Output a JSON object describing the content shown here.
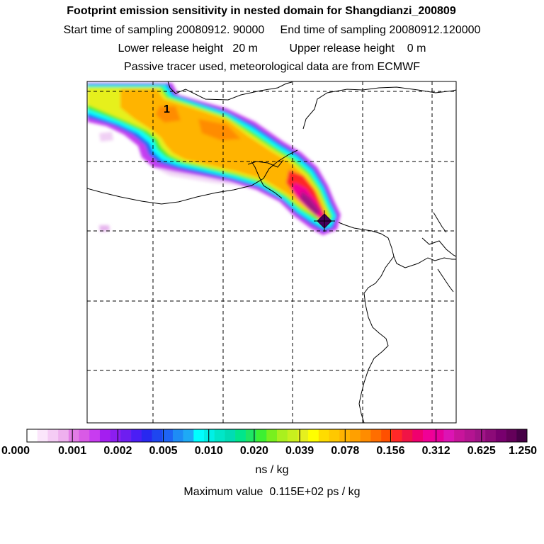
{
  "header": {
    "title": "Footprint emission sensitivity in nested domain for Shangdianzi_200809",
    "sampling": "Start time of sampling 20080912. 90000     End time of sampling 20080912.120000",
    "release": "Lower release height   20 m          Upper release height    0 m",
    "note": "Passive tracer used, meteorological data are from ECMWF"
  },
  "map": {
    "release_label": "1",
    "coastline_color": "#000000",
    "grid_color": "#000000"
  },
  "colorbar": {
    "ticks": [
      "0.000",
      "0.001",
      "0.002",
      "0.005",
      "0.010",
      "0.020",
      "0.039",
      "0.078",
      "0.156",
      "0.312",
      "0.625",
      "1.250"
    ],
    "colors": [
      "#ffffff",
      "#fbe6fb",
      "#f5ccf5",
      "#eeb0ee",
      "#e27ce6",
      "#d95ae6",
      "#c83cf0",
      "#a41ef0",
      "#8c1ef0",
      "#6e1ef0",
      "#4b1ef5",
      "#2828f0",
      "#1e46f0",
      "#1e64f5",
      "#1e8cf5",
      "#1eaaf5",
      "#00ffff",
      "#00f0e6",
      "#00e6c8",
      "#00dcb4",
      "#00e68c",
      "#1ee664",
      "#3cf032",
      "#78f01e",
      "#aaf01e",
      "#c8f01e",
      "#e6f01e",
      "#ffff00",
      "#ffdc00",
      "#ffc800",
      "#ffb400",
      "#ffa000",
      "#ff8c00",
      "#ff6e00",
      "#ff5000",
      "#ff2828",
      "#f01446",
      "#f0006e",
      "#f00096",
      "#e6009b",
      "#dc14b4",
      "#c8149b",
      "#b41491",
      "#a01487",
      "#8c0a78",
      "#78006e",
      "#64005a",
      "#460046"
    ],
    "unit": "ns / kg"
  },
  "footer": {
    "max_value": "Maximum value  0.115E+02 ps / kg"
  }
}
